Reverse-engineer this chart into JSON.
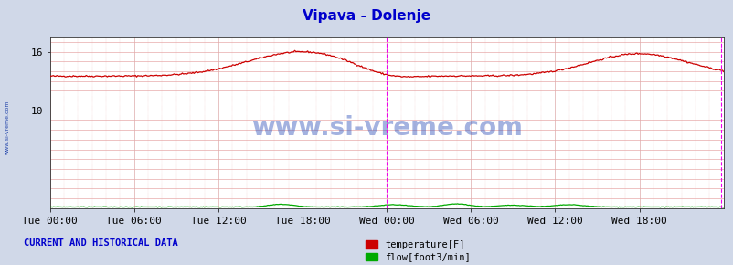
{
  "title": "Vipava - Dolenje",
  "title_color": "#0000cc",
  "bg_color": "#d0d8e8",
  "plot_bg_color": "#ffffff",
  "watermark": "www.si-vreme.com",
  "watermark_color": "#3355bb",
  "sidebar_text": "www.si-vreme.com",
  "yticks": [
    10,
    16
  ],
  "ymin": 0,
  "ymax": 17.5,
  "grid_color": "#e8aaaa",
  "grid_color_v": "#ddaaaa",
  "xtick_labels": [
    "Tue 00:00",
    "Tue 06:00",
    "Tue 12:00",
    "Tue 18:00",
    "Wed 00:00",
    "Wed 06:00",
    "Wed 12:00",
    "Wed 18:00"
  ],
  "num_points": 576,
  "temp_color": "#cc0000",
  "flow_color": "#00aa00",
  "vline_color_magenta": "#ee00ee",
  "arrow_color": "#880000",
  "legend_label_temp": "temperature[F]",
  "legend_label_flow": "flow[foot3/min]",
  "current_label": "CURRENT AND HISTORICAL DATA",
  "current_label_color": "#0000cc",
  "tick_color": "#000000",
  "tick_fontsize": 8,
  "title_fontsize": 11
}
